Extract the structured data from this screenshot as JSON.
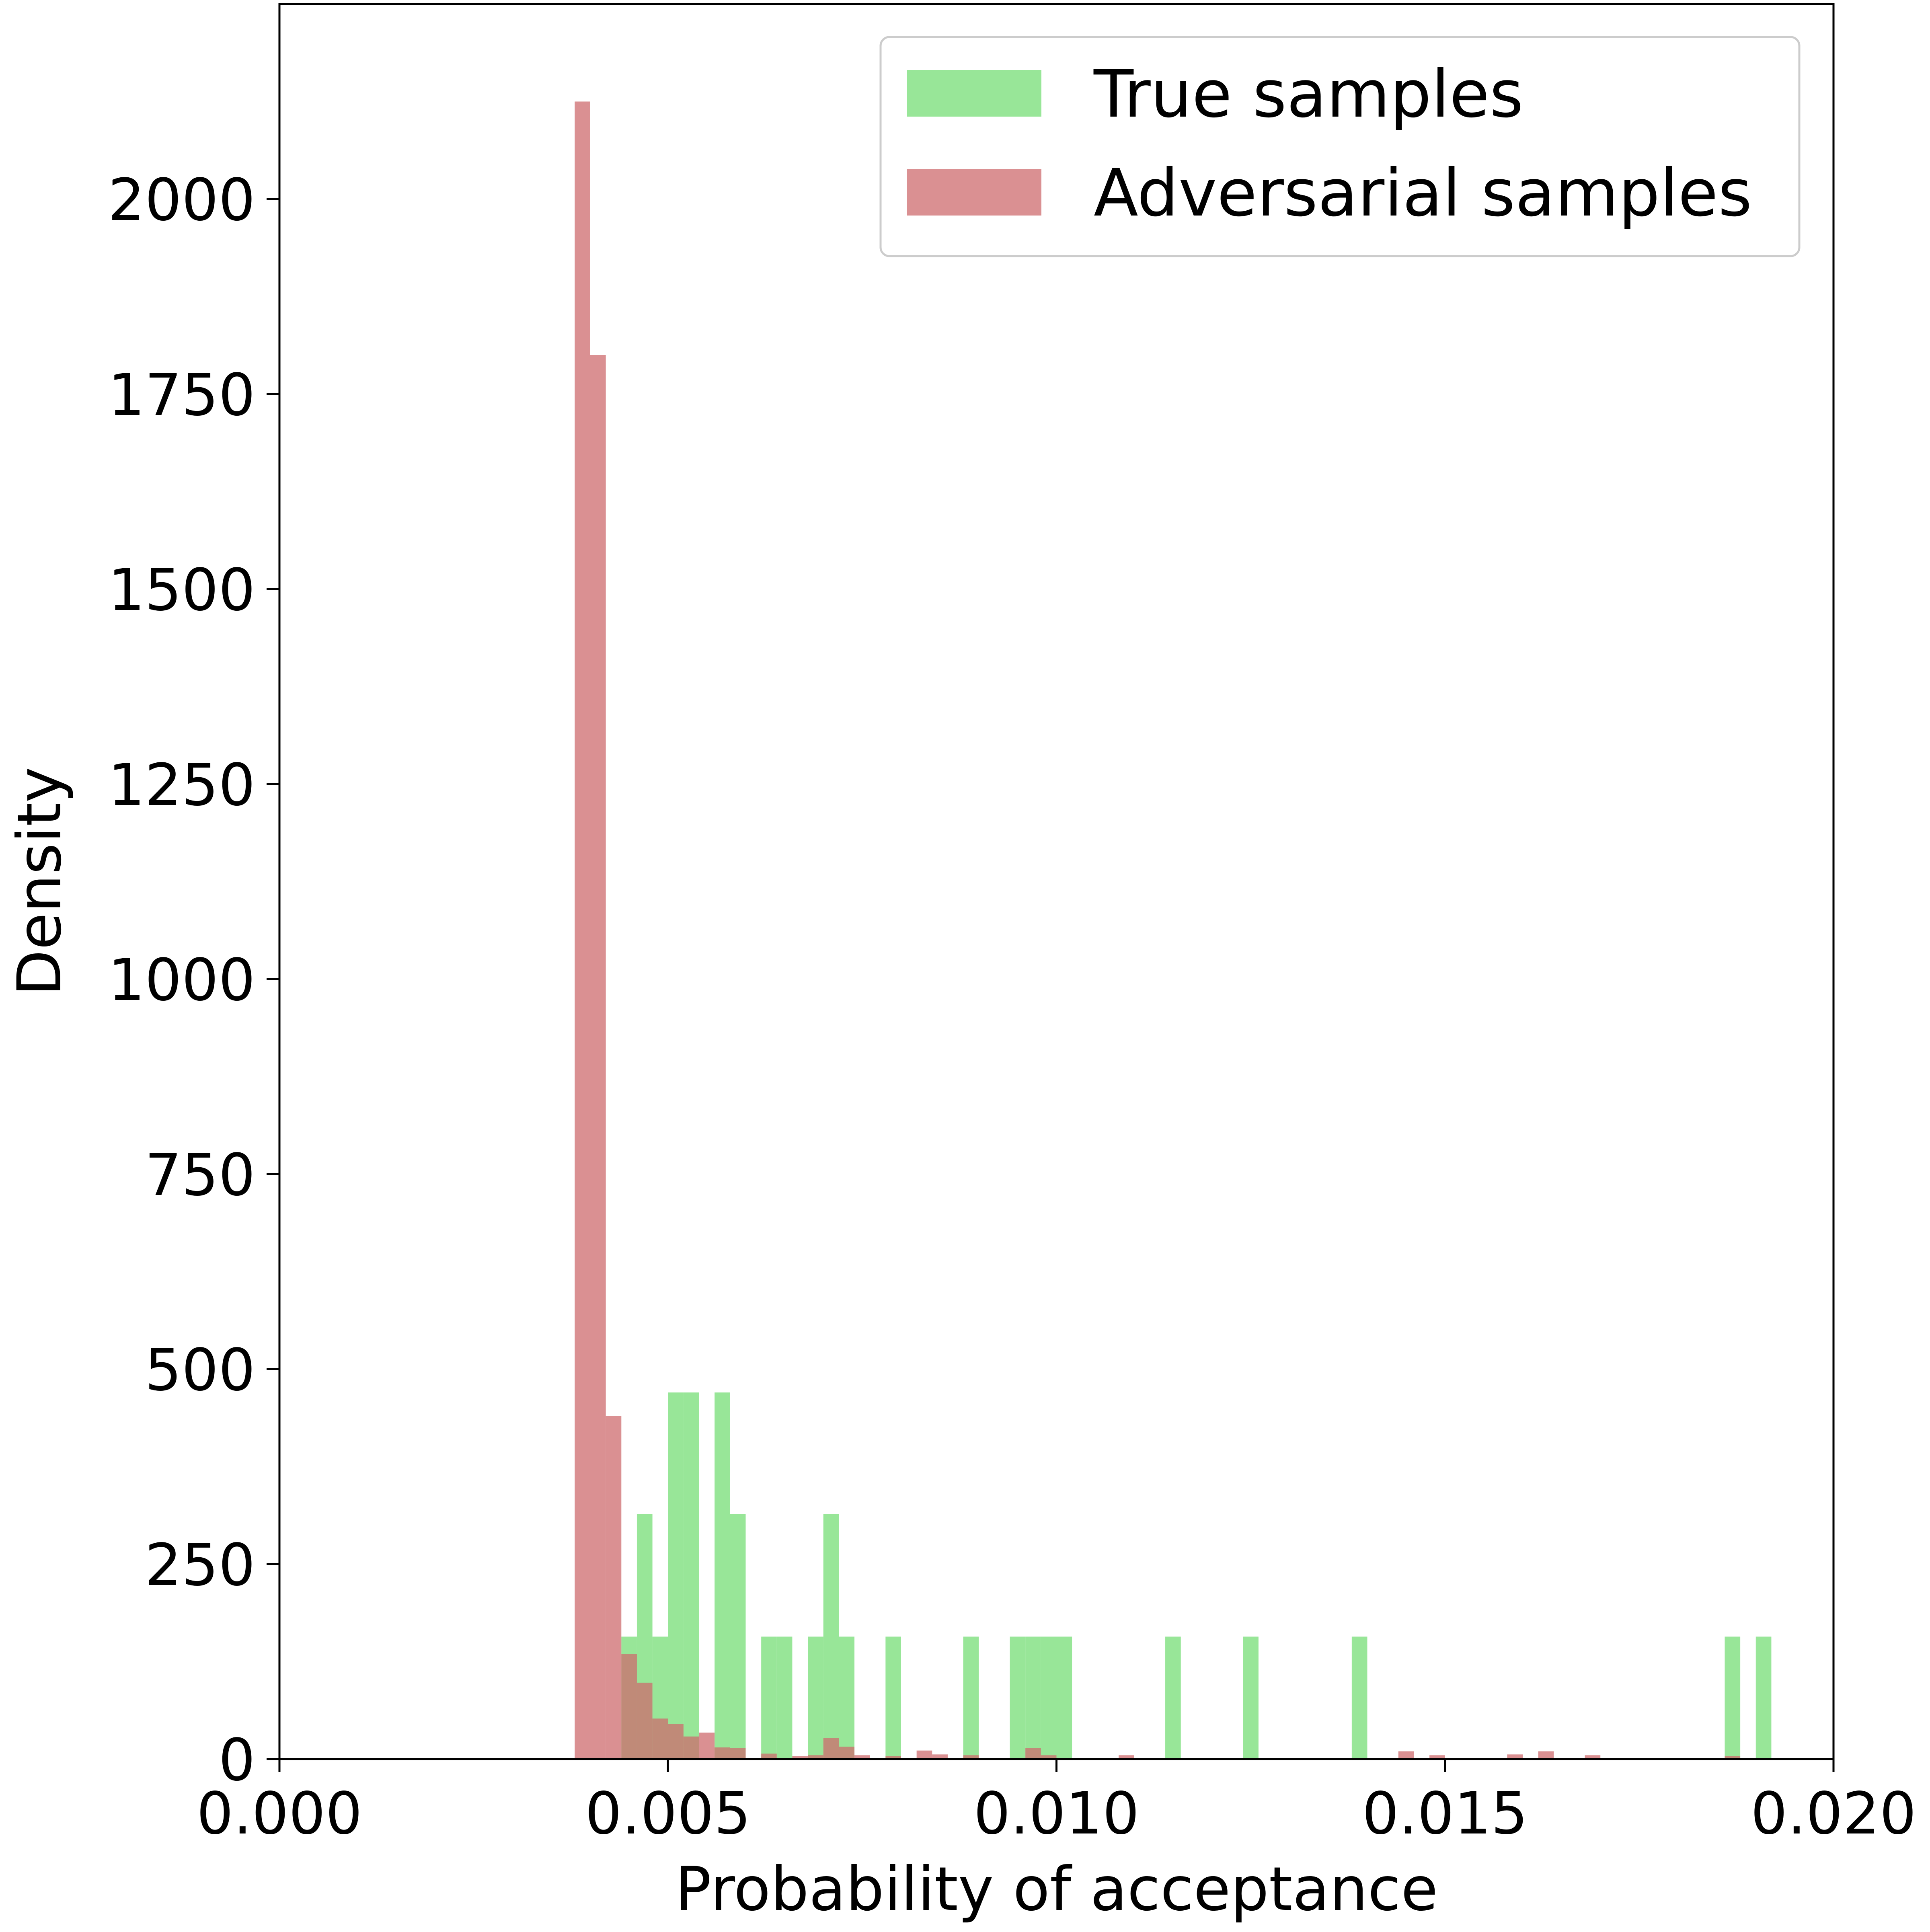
{
  "chart_data": {
    "type": "bar",
    "title": "",
    "xlabel": "Probability of acceptance",
    "ylabel": "Density",
    "xlim": [
      0.0,
      0.02
    ],
    "ylim": [
      0,
      2250
    ],
    "x_ticks": [
      "0.000",
      "0.005",
      "0.010",
      "0.015",
      "0.020"
    ],
    "x_tick_values": [
      0.0,
      0.005,
      0.01,
      0.015,
      0.02
    ],
    "y_ticks": [
      "0",
      "250",
      "500",
      "750",
      "1000",
      "1250",
      "1500",
      "1750",
      "2000"
    ],
    "y_tick_values": [
      0,
      250,
      500,
      750,
      1000,
      1250,
      1500,
      1750,
      2000
    ],
    "grid": false,
    "legend_position": "top-right",
    "bin_width": 0.0002,
    "series": [
      {
        "name": "True samples",
        "color": "#6cdc6c",
        "opacity": 0.7,
        "bin_starts": [
          0.0044,
          0.0046,
          0.0048,
          0.005,
          0.0052,
          0.0056,
          0.0058,
          0.0062,
          0.0064,
          0.0068,
          0.007,
          0.0072,
          0.0078,
          0.0088,
          0.0094,
          0.0096,
          0.0098,
          0.01,
          0.0114,
          0.0124,
          0.0138,
          0.0186,
          0.019
        ],
        "values": [
          157,
          314,
          157,
          470,
          470,
          470,
          314,
          157,
          157,
          157,
          314,
          157,
          157,
          157,
          157,
          157,
          157,
          157,
          157,
          157,
          157,
          157,
          157
        ]
      },
      {
        "name": "Adversarial samples",
        "color": "#cd6b6d",
        "opacity": 0.75,
        "bin_starts": [
          0.0038,
          0.004,
          0.0042,
          0.0044,
          0.0046,
          0.0048,
          0.005,
          0.0052,
          0.0054,
          0.0056,
          0.0058,
          0.0062,
          0.0066,
          0.0068,
          0.007,
          0.0072,
          0.0074,
          0.0078,
          0.0082,
          0.0084,
          0.0088,
          0.0096,
          0.0098,
          0.0108,
          0.0144,
          0.0148,
          0.0158,
          0.0162,
          0.0168,
          0.0186
        ],
        "values": [
          2125,
          1800,
          440,
          135,
          98,
          52,
          45,
          29,
          34,
          15,
          14,
          7,
          4,
          5,
          27,
          16,
          5,
          4,
          11,
          6,
          5,
          14,
          5,
          5,
          10,
          5,
          6,
          10,
          5,
          4
        ]
      }
    ]
  }
}
